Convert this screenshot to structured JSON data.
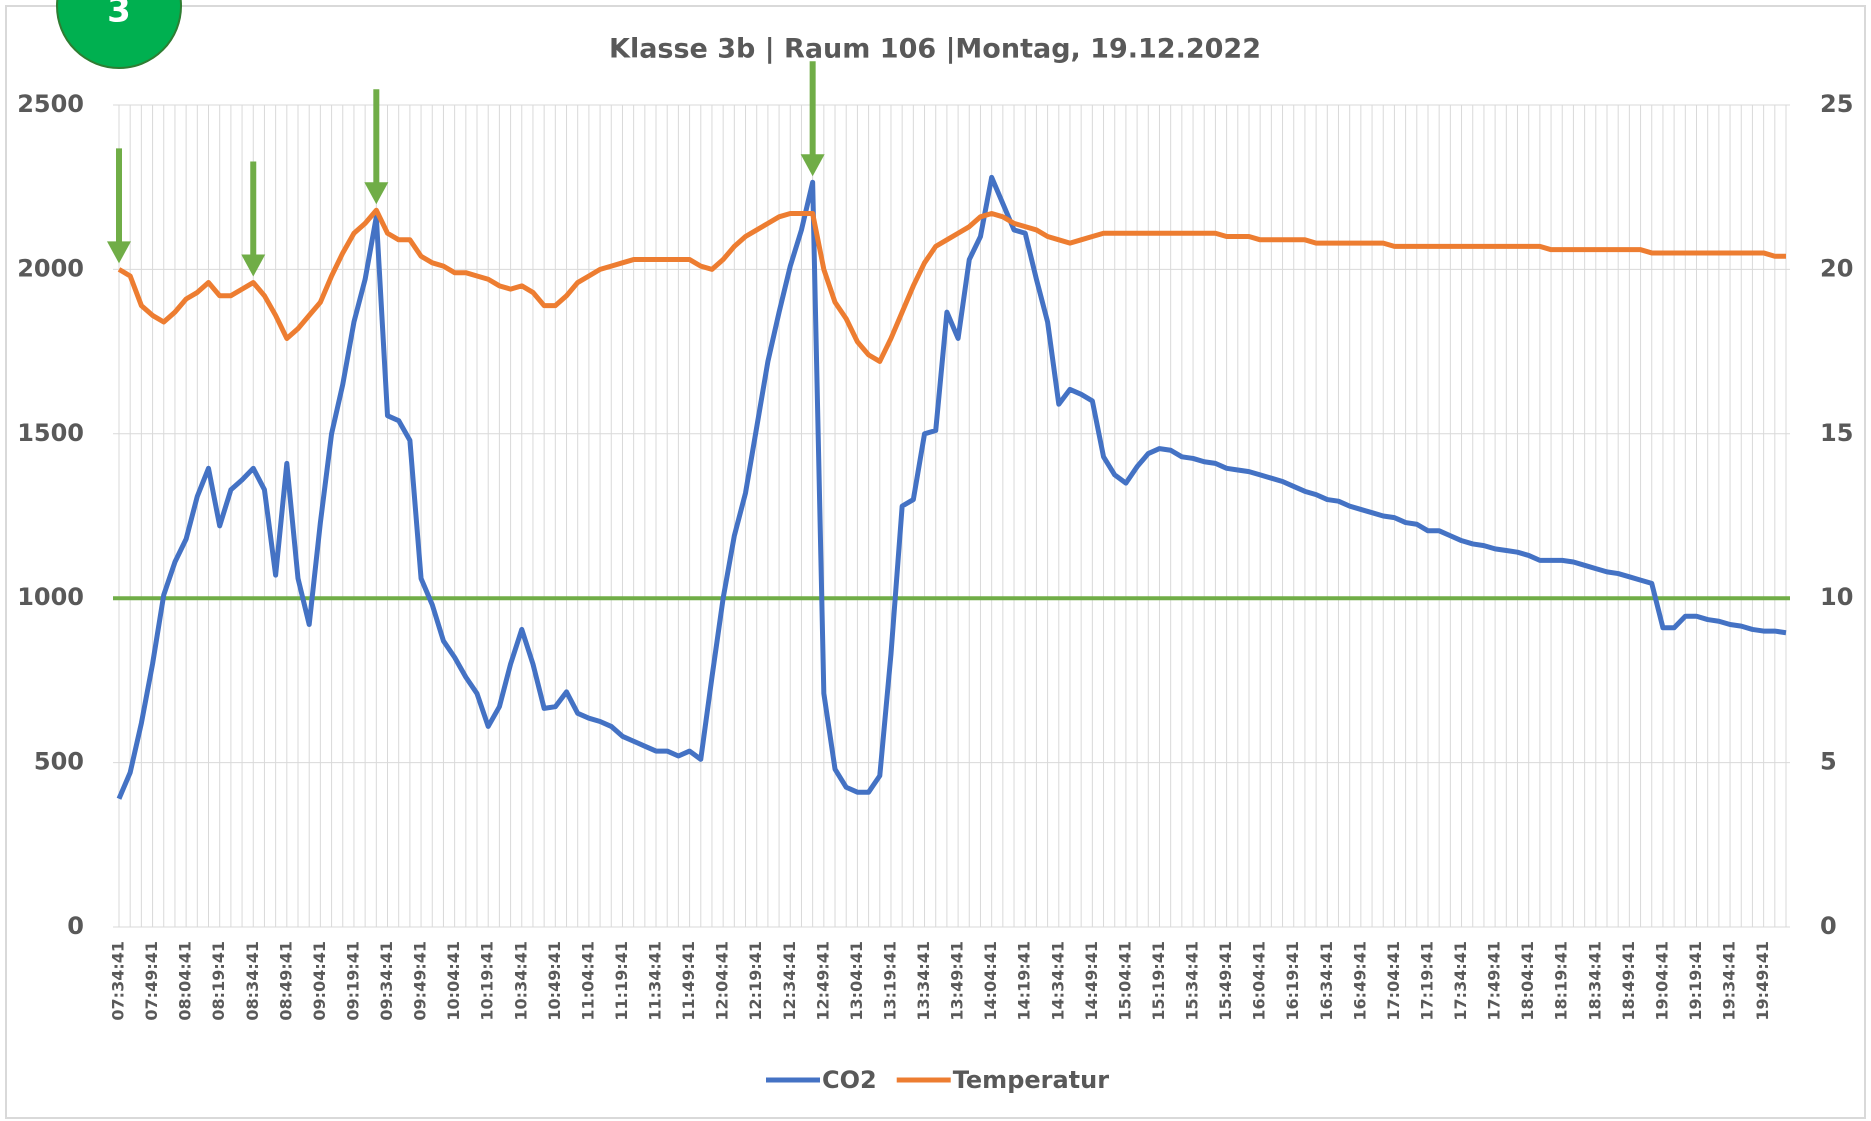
{
  "chart_data": {
    "type": "line",
    "badge": "3",
    "title": "Klasse 3b | Raum 106 |Montag, 19.12.2022",
    "categories": [
      "07:34:41",
      null,
      null,
      "07:49:41",
      null,
      null,
      "08:04:41",
      null,
      null,
      "08:19:41",
      null,
      null,
      "08:34:41",
      null,
      null,
      "08:49:41",
      null,
      null,
      "09:04:41",
      null,
      null,
      "09:19:41",
      null,
      null,
      "09:34:41",
      null,
      null,
      "09:49:41",
      null,
      null,
      "10:04:41",
      null,
      null,
      "10:19:41",
      null,
      null,
      "10:34:41",
      null,
      null,
      "10:49:41",
      null,
      null,
      "11:04:41",
      null,
      null,
      "11:19:41",
      null,
      null,
      "11:34:41",
      null,
      null,
      "11:49:41",
      null,
      null,
      "12:04:41",
      null,
      null,
      "12:19:41",
      null,
      null,
      "12:34:41",
      null,
      null,
      "12:49:41",
      null,
      null,
      "13:04:41",
      null,
      null,
      "13:19:41",
      null,
      null,
      "13:34:41",
      null,
      null,
      "13:49:41",
      null,
      null,
      "14:04:41",
      null,
      null,
      "14:19:41",
      null,
      null,
      "14:34:41",
      null,
      null,
      "14:49:41",
      null,
      null,
      "15:04:41",
      null,
      null,
      "15:19:41",
      null,
      null,
      "15:34:41",
      null,
      null,
      "15:49:41",
      null,
      null,
      "16:04:41",
      null,
      null,
      "16:19:41",
      null,
      null,
      "16:34:41",
      null,
      null,
      "16:49:41",
      null,
      null,
      "17:04:41",
      null,
      null,
      "17:19:41",
      null,
      null,
      "17:34:41",
      null,
      null,
      "17:49:41",
      null,
      null,
      "18:04:41",
      null,
      null,
      "18:19:41",
      null,
      null,
      "18:34:41",
      null,
      null,
      "18:49:41",
      null,
      null,
      "19:04:41",
      null,
      null,
      "19:19:41",
      null,
      null,
      "19:34:41",
      null,
      null,
      "19:49:41",
      null,
      null
    ],
    "series": [
      {
        "name": "CO2",
        "color": "#4472c4",
        "axis": "y",
        "values": [
          390,
          470,
          620,
          800,
          1010,
          1110,
          1180,
          1310,
          1395,
          1220,
          1330,
          1360,
          1395,
          1330,
          1070,
          1410,
          1060,
          920,
          1230,
          1500,
          1650,
          1840,
          1970,
          2160,
          1555,
          1540,
          1480,
          1060,
          980,
          870,
          820,
          760,
          710,
          610,
          670,
          800,
          905,
          800,
          665,
          670,
          715,
          650,
          635,
          625,
          610,
          580,
          565,
          550,
          535,
          535,
          520,
          535,
          510,
          760,
          1000,
          1190,
          1320,
          1520,
          1720,
          1870,
          2010,
          2120,
          2265,
          710,
          480,
          425,
          410,
          410,
          460,
          830,
          1280,
          1300,
          1500,
          1510,
          1870,
          1790,
          2030,
          2100,
          2280,
          2200,
          2120,
          2110,
          1970,
          1840,
          1590,
          1635,
          1620,
          1600,
          1430,
          1375,
          1350,
          1400,
          1440,
          1455,
          1450,
          1430,
          1425,
          1415,
          1410,
          1395,
          1390,
          1385,
          1375,
          1365,
          1355,
          1340,
          1325,
          1315,
          1300,
          1295,
          1280,
          1270,
          1260,
          1250,
          1245,
          1230,
          1225,
          1205,
          1205,
          1190,
          1175,
          1165,
          1160,
          1150,
          1145,
          1140,
          1130,
          1115,
          1115,
          1115,
          1110,
          1100,
          1090,
          1080,
          1075,
          1065,
          1055,
          1045,
          910,
          910,
          945,
          945,
          935,
          930,
          920,
          915,
          905,
          900,
          900,
          895
        ]
      },
      {
        "name": "Temperatur",
        "color": "#ed7d31",
        "axis": "y2",
        "values": [
          20.0,
          19.8,
          18.9,
          18.6,
          18.4,
          18.7,
          19.1,
          19.3,
          19.6,
          19.2,
          19.2,
          19.4,
          19.6,
          19.2,
          18.6,
          17.9,
          18.2,
          18.6,
          19.0,
          19.8,
          20.5,
          21.1,
          21.4,
          21.8,
          21.1,
          20.9,
          20.9,
          20.4,
          20.2,
          20.1,
          19.9,
          19.9,
          19.8,
          19.7,
          19.5,
          19.4,
          19.5,
          19.3,
          18.9,
          18.9,
          19.2,
          19.6,
          19.8,
          20.0,
          20.1,
          20.2,
          20.3,
          20.3,
          20.3,
          20.3,
          20.3,
          20.3,
          20.1,
          20.0,
          20.3,
          20.7,
          21.0,
          21.2,
          21.4,
          21.6,
          21.7,
          21.7,
          21.7,
          20.0,
          19.0,
          18.5,
          17.8,
          17.4,
          17.2,
          17.9,
          18.7,
          19.5,
          20.2,
          20.7,
          20.9,
          21.1,
          21.3,
          21.6,
          21.7,
          21.6,
          21.4,
          21.3,
          21.2,
          21.0,
          20.9,
          20.8,
          20.9,
          21.0,
          21.1,
          21.1,
          21.1,
          21.1,
          21.1,
          21.1,
          21.1,
          21.1,
          21.1,
          21.1,
          21.1,
          21.0,
          21.0,
          21.0,
          20.9,
          20.9,
          20.9,
          20.9,
          20.9,
          20.8,
          20.8,
          20.8,
          20.8,
          20.8,
          20.8,
          20.8,
          20.7,
          20.7,
          20.7,
          20.7,
          20.7,
          20.7,
          20.7,
          20.7,
          20.7,
          20.7,
          20.7,
          20.7,
          20.7,
          20.7,
          20.6,
          20.6,
          20.6,
          20.6,
          20.6,
          20.6,
          20.6,
          20.6,
          20.6,
          20.5,
          20.5,
          20.5,
          20.5,
          20.5,
          20.5,
          20.5,
          20.5,
          20.5,
          20.5,
          20.5,
          20.4,
          20.4
        ]
      }
    ],
    "ylim": [
      0,
      2500
    ],
    "yticks": [
      0,
      500,
      1000,
      1500,
      2000,
      2500
    ],
    "y2lim": [
      0,
      25
    ],
    "y2ticks": [
      0,
      5,
      10,
      15,
      20,
      25
    ],
    "reference_line": {
      "value": 1000,
      "color": "#70ad47"
    },
    "arrows": {
      "color": "#70ad47",
      "at": [
        0,
        12,
        23,
        62
      ]
    },
    "grid": true,
    "legend": "bottom"
  }
}
